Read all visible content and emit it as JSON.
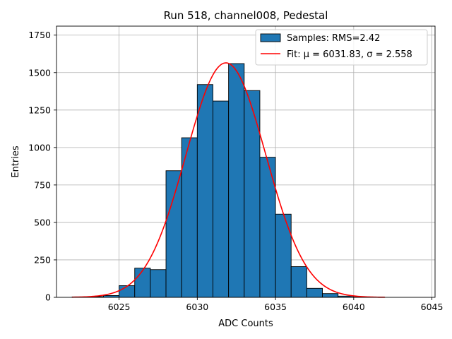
{
  "chart_data": {
    "type": "bar",
    "title": "Run 518, channel008, Pedestal",
    "xlabel": "ADC Counts",
    "ylabel": "Entries",
    "xlim": [
      6021,
      6045.2
    ],
    "ylim": [
      0,
      1810
    ],
    "xticks": [
      6025,
      6030,
      6035,
      6040,
      6045
    ],
    "yticks": [
      0,
      250,
      500,
      750,
      1000,
      1250,
      1500,
      1750
    ],
    "grid": true,
    "legend_position": "top-right",
    "bin_width": 1,
    "bins": [
      {
        "left": 6022,
        "value": 3
      },
      {
        "left": 6023,
        "value": 5
      },
      {
        "left": 6024,
        "value": 12
      },
      {
        "left": 6025,
        "value": 78
      },
      {
        "left": 6026,
        "value": 195
      },
      {
        "left": 6027,
        "value": 185
      },
      {
        "left": 6028,
        "value": 845
      },
      {
        "left": 6029,
        "value": 1065
      },
      {
        "left": 6030,
        "value": 1420
      },
      {
        "left": 6031,
        "value": 1310
      },
      {
        "left": 6032,
        "value": 1560
      },
      {
        "left": 6033,
        "value": 1380
      },
      {
        "left": 6034,
        "value": 935
      },
      {
        "left": 6035,
        "value": 555
      },
      {
        "left": 6036,
        "value": 205
      },
      {
        "left": 6037,
        "value": 60
      },
      {
        "left": 6038,
        "value": 25
      },
      {
        "left": 6039,
        "value": 8
      },
      {
        "left": 6040,
        "value": 2
      }
    ],
    "fit": {
      "mu": 6031.83,
      "sigma": 2.558,
      "amplitude": 1565,
      "x_range": [
        6022,
        6042
      ]
    },
    "series": [
      {
        "name": "Samples: RMS=2.42",
        "kind": "histogram",
        "color": "#1f77b4"
      },
      {
        "name": "Fit: μ = 6031.83, σ = 2.558",
        "kind": "line",
        "color": "#ff0000"
      }
    ]
  }
}
